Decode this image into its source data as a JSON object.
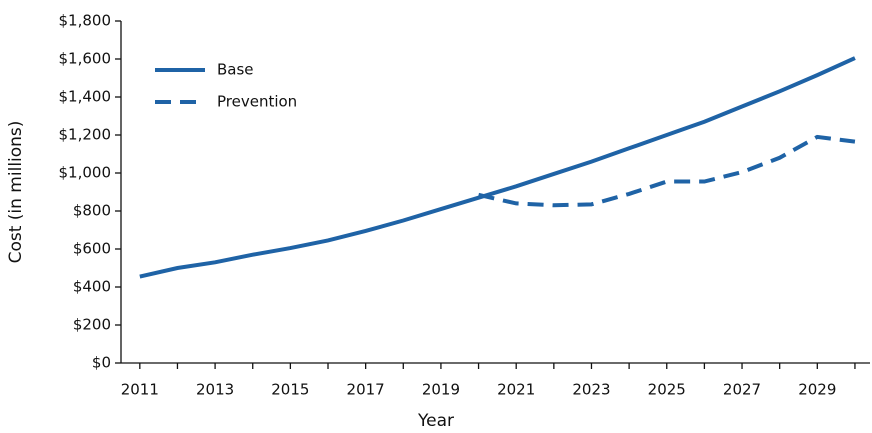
{
  "chart_data": {
    "type": "line",
    "x_label": "Year",
    "y_label": "Cost (in millions)",
    "x": [
      2011,
      2012,
      2013,
      2014,
      2015,
      2016,
      2017,
      2018,
      2019,
      2020,
      2021,
      2022,
      2023,
      2024,
      2025,
      2026,
      2027,
      2028,
      2029,
      2030
    ],
    "series": [
      {
        "name": "Base",
        "color": "#1f63a6",
        "dash": "solid",
        "values": [
          455,
          500,
          530,
          570,
          605,
          645,
          695,
          750,
          810,
          870,
          930,
          995,
          1060,
          1130,
          1200,
          1270,
          1350,
          1430,
          1515,
          1605
        ]
      },
      {
        "name": "Prevention",
        "color": "#1f63a6",
        "dash": "dashed",
        "values": [
          null,
          null,
          null,
          null,
          null,
          null,
          null,
          null,
          null,
          885,
          840,
          830,
          835,
          890,
          955,
          955,
          1005,
          1080,
          1190,
          1165
        ]
      }
    ],
    "xlim": [
      2010.5,
      2030.4
    ],
    "xticks": [
      2011,
      2013,
      2015,
      2017,
      2019,
      2021,
      2023,
      2025,
      2027,
      2029
    ],
    "xminorticks": [
      2012,
      2014,
      2016,
      2018,
      2020,
      2022,
      2024,
      2026,
      2028,
      2030
    ],
    "ylim": [
      0,
      1800
    ],
    "yticks": [
      {
        "value": 0,
        "label": "$0"
      },
      {
        "value": 200,
        "label": "$200"
      },
      {
        "value": 400,
        "label": "$400"
      },
      {
        "value": 600,
        "label": "$600"
      },
      {
        "value": 800,
        "label": "$800"
      },
      {
        "value": 1000,
        "label": "$1,000"
      },
      {
        "value": 1200,
        "label": "$1,200"
      },
      {
        "value": 1400,
        "label": "$1,400"
      },
      {
        "value": 1600,
        "label": "$1,600"
      },
      {
        "value": 1800,
        "label": "$1,800"
      }
    ],
    "legend": "upper left",
    "grid": false
  }
}
